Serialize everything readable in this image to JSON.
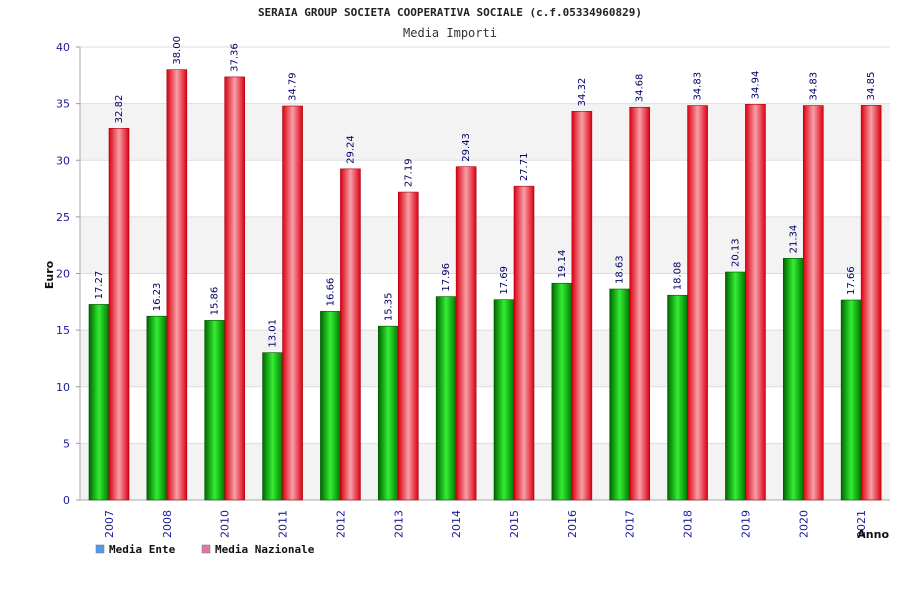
{
  "chart_data": {
    "type": "bar",
    "title": "SERAIA GROUP SOCIETA COOPERATIVA SOCIALE (c.f.05334960829)",
    "subtitle": "Media Importi",
    "xlabel": "Anno",
    "ylabel": "Euro",
    "ylim": [
      0,
      40
    ],
    "yticks": [
      0,
      5,
      10,
      15,
      20,
      25,
      30,
      35,
      40
    ],
    "categories": [
      "2007",
      "2008",
      "2010",
      "2011",
      "2012",
      "2013",
      "2014",
      "2015",
      "2016",
      "2017",
      "2018",
      "2019",
      "2020",
      "2021"
    ],
    "series": [
      {
        "name": "Media Ente",
        "color": "#11aa11",
        "legend_color": "#5599ee",
        "values": [
          17.27,
          16.23,
          15.86,
          13.01,
          16.66,
          15.35,
          17.96,
          17.69,
          19.14,
          18.63,
          18.08,
          20.13,
          21.34,
          17.66
        ],
        "labels": [
          "17.27",
          "16.23",
          "15.86",
          "13.01",
          "16.66",
          "15.35",
          "17.96",
          "17.69",
          "19.14",
          "18.63",
          "18.08",
          "20.13",
          "21.34",
          "17.66"
        ]
      },
      {
        "name": "Media Nazionale",
        "color": "#ee1122",
        "legend_color": "#dd77aa",
        "values": [
          32.82,
          38.0,
          37.36,
          34.79,
          29.24,
          27.19,
          29.43,
          27.71,
          34.32,
          34.68,
          34.83,
          34.94,
          34.83,
          34.85
        ],
        "labels": [
          "32.82",
          "38.00",
          "37.36",
          "34.79",
          "29.24",
          "27.19",
          "29.43",
          "27.71",
          "34.32",
          "34.68",
          "34.83",
          "34.94",
          "34.83",
          "34.85"
        ]
      }
    ],
    "grid": true,
    "legend_position": "bottom-left"
  }
}
